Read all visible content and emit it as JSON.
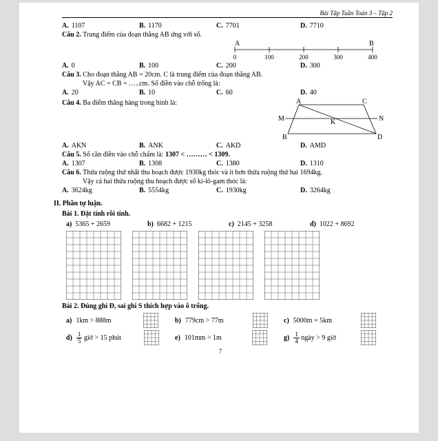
{
  "header": {
    "title": "Bài Tập Tuần Toán 3 – Tập 2"
  },
  "q1": {
    "A_lbl": "A.",
    "A": "1107",
    "B_lbl": "B.",
    "B": "1170",
    "C_lbl": "C.",
    "C": "7701",
    "D_lbl": "D.",
    "D": "7710"
  },
  "q2": {
    "title_b": "Câu 2.",
    "title": " Trung điểm của đoạn thẳng AB ứng với số.",
    "numline": {
      "labels": [
        "A",
        "B"
      ],
      "ticks": [
        "0",
        "100",
        "200",
        "300",
        "400"
      ]
    },
    "A_lbl": "A.",
    "A": "0",
    "B_lbl": "B.",
    "B": "100",
    "C_lbl": "C.",
    "C": "200",
    "D_lbl": "D.",
    "D": "300"
  },
  "q3": {
    "title_b": "Câu 3.",
    "title": " Cho đoạn thẳng AB = 20cm. C là trung điểm của đoạn thẳng AB.",
    "sub": "Vậy AC = CB = …..cm. Số điền vào chỗ trống là:",
    "A_lbl": "A.",
    "A": "20",
    "B_lbl": "B.",
    "B": "10",
    "C_lbl": "C.",
    "C": "60",
    "D_lbl": "D.",
    "D": "40"
  },
  "q4": {
    "title_b": "Câu 4.",
    "title": " Ba điểm thẳng hàng trong hình là:",
    "nodes": [
      "A",
      "C",
      "M",
      "K",
      "N",
      "B",
      "D"
    ],
    "A_lbl": "A.",
    "A": "AKN",
    "B_lbl": "B.",
    "B": "ANK",
    "C_lbl": "C.",
    "C": "AKD",
    "D_lbl": "D.",
    "D": "AMD"
  },
  "q5": {
    "title_b": "Câu 5.",
    "title_a": " Số cần điền vào chỗ chấm là: ",
    "bold": "1307 < ……… < 1309.",
    "A_lbl": "A.",
    "A": "1307",
    "B_lbl": "B.",
    "B": "1308",
    "C_lbl": "C.",
    "C": "1380",
    "D_lbl": "D.",
    "D": "1310"
  },
  "q6": {
    "title_b": "Câu 6.",
    "title": " Thửa ruộng thứ nhất thu hoạch được 1930kg thóc và ít hơn thửa ruộng thứ hai 1694kg.",
    "sub": "Vậy cả hai thửa ruộng thu hoạch được số ki-lô-gam thóc là:",
    "A_lbl": "A.",
    "A": "3624kg",
    "B_lbl": "B.",
    "B": "5554kg",
    "C_lbl": "C.",
    "C": "1930kg",
    "D_lbl": "D.",
    "D": "3264kg"
  },
  "part2": {
    "title": "II. Phần tự luận."
  },
  "bai1": {
    "title": "Bài 1. Đặt tính rồi tính.",
    "a_lbl": "a)",
    "a": "5365 + 2659",
    "b_lbl": "b)",
    "b": "6682 + 1215",
    "c_lbl": "c)",
    "c": "2145 + 3258",
    "d_lbl": "d)",
    "d": "1022 + 8692",
    "grid": {
      "cols": 8,
      "rows": 10,
      "cell": 10,
      "stroke": "#555"
    }
  },
  "bai2": {
    "title": "Bài 2. Đúng ghi Đ, sai ghi S thích hợp vào ô trống.",
    "items": [
      {
        "lbl": "a)",
        "txt": "1km > 888m"
      },
      {
        "lbl": "b)",
        "txt": "779cm > 77m"
      },
      {
        "lbl": "c)",
        "txt": "5000m = 5km"
      },
      {
        "lbl": "d)",
        "frac": [
          "1",
          "5"
        ],
        "tail": " giờ > 15 phút"
      },
      {
        "lbl": "e)",
        "txt": "101mm > 1m"
      },
      {
        "lbl": "g)",
        "frac": [
          "1",
          "4"
        ],
        "tail": " ngày  >  9 giờ"
      }
    ],
    "grid": {
      "cols": 4,
      "rows": 4,
      "cell": 5.5,
      "stroke": "#555"
    }
  },
  "pagenum": "7"
}
